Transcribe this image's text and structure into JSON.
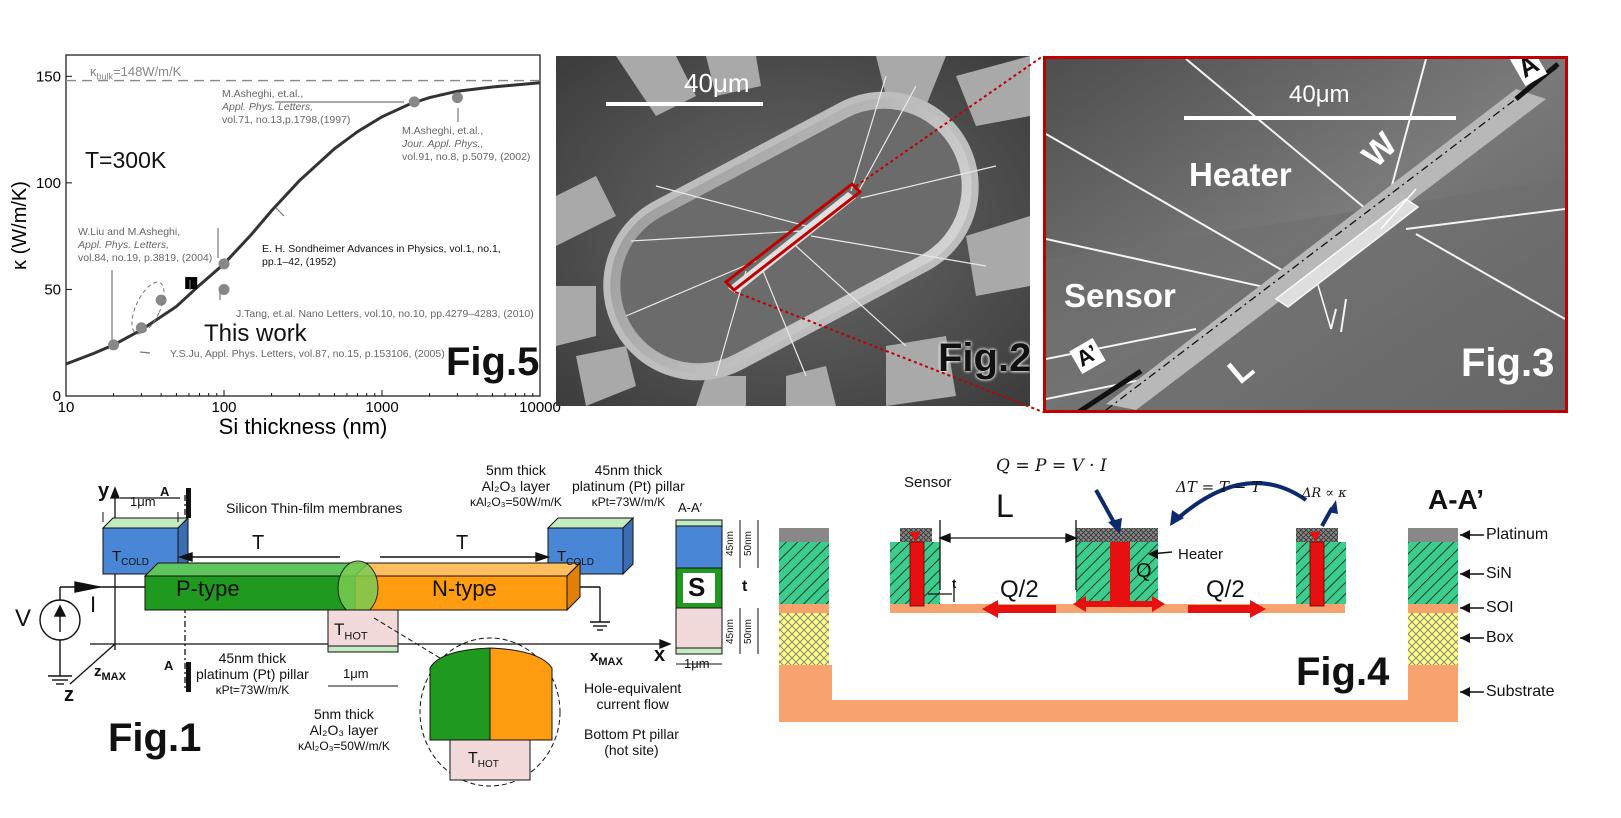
{
  "fig5": {
    "label": "Fig.5",
    "temperature": "T=300K",
    "this_work": "This work",
    "kbulk_prefix": "κ",
    "kbulk_sub": "bulk",
    "kbulk_suffix": "=148W/m/K",
    "refs": {
      "asheghi1997": [
        "M.Asheghi, et.al.,",
        "Appl. Phys. Letters,",
        "vol.71, no.13,p.1798,(1997)"
      ],
      "asheghi2002": [
        "M.Asheghi, et.al.,",
        "Jour. Appl. Phys.,",
        "vol.91, no.8, p.5079, (2002)"
      ],
      "liu2004": [
        "W.Liu and M.Asheghi,",
        "Appl. Phys. Letters,",
        "vol.84, no.19, p.3819, (2004)"
      ],
      "sondheimer": [
        "E. H. Sondheimer Advances in Physics, vol.1, no.1,",
        "pp.1–42, (1952)"
      ],
      "tang": "J.Tang, et.al. Nano Letters, vol.10, no.10, pp.4279–4283, (2010)",
      "ju": "Y.S.Ju, Appl. Phys. Letters, vol.87, no.15, p.153106, (2005)"
    }
  },
  "chart_data": {
    "type": "scatter",
    "xlabel": "Si thickness (nm)",
    "ylabel": "κ (W/m/K)",
    "xscale": "log",
    "xlim": [
      10,
      10000
    ],
    "ylim": [
      0,
      160
    ],
    "xticks": [
      "10",
      "100",
      "1000",
      "10000"
    ],
    "yticks": [
      "0",
      "50",
      "100",
      "150"
    ],
    "reference_line": {
      "y": 148,
      "label": "κbulk=148W/m/K"
    },
    "series": [
      {
        "name": "E. H. Sondheimer",
        "type": "line",
        "x": [
          10,
          15,
          20,
          30,
          50,
          70,
          100,
          150,
          200,
          300,
          500,
          700,
          1000,
          1500,
          2000,
          3000,
          5000,
          10000
        ],
        "y": [
          15,
          20,
          24,
          31,
          42,
          52,
          62,
          76,
          87,
          101,
          116,
          124,
          131,
          137,
          140,
          143,
          145,
          147
        ]
      },
      {
        "name": "W.Liu and M.Asheghi",
        "x": [
          20,
          30
        ],
        "y": [
          24,
          32
        ]
      },
      {
        "name": "Y.S.Ju",
        "x": [
          40
        ],
        "y": [
          45
        ]
      },
      {
        "name": "J.Tang",
        "x": [
          100
        ],
        "y": [
          50
        ]
      },
      {
        "name": "M.Asheghi",
        "x": [
          100,
          1600,
          3000
        ],
        "y": [
          62,
          138,
          140
        ]
      },
      {
        "name": "This work",
        "x": [
          62
        ],
        "y": [
          53
        ]
      }
    ]
  },
  "fig2": {
    "label": "Fig.2",
    "scale": "40μm"
  },
  "fig3": {
    "label": "Fig.3",
    "scale": "40μm",
    "heater": "Heater",
    "sensor": "Sensor",
    "w": "W",
    "l": "L",
    "a": "A",
    "a_prime": "A’"
  },
  "fig1": {
    "label": "Fig.1",
    "y": "y",
    "x": "x",
    "z": "z",
    "v": "V",
    "i": "I",
    "x_max": "x",
    "x_max_sub": "MAX",
    "z_max": "z",
    "z_max_sub": "MAX",
    "one_um_top": "1μm",
    "one_um_bottom": "1μm",
    "one_um_right": "1μm",
    "a": "A",
    "a_prime": "A",
    "t": "T",
    "t_small": "t",
    "t_cold": "T",
    "t_cold_sub": "COLD",
    "t_hot": "T",
    "t_hot_sub": "HOT",
    "p_type": "P-type",
    "n_type": "N-type",
    "membranes": "Silicon Thin-film membranes",
    "al2o3_top": [
      "5nm thick",
      "Al₂O₃ layer",
      "κAl₂O₃=50W/m/K"
    ],
    "pt_top": [
      "45nm thick",
      "platinum (Pt) pillar",
      "κPt=73W/m/K"
    ],
    "pt_bottom": [
      "45nm thick",
      "platinum (Pt) pillar",
      "κPt=73W/m/K"
    ],
    "al2o3_bottom": [
      "5nm thick",
      "Al₂O₃ layer",
      "κAl₂O₃=50W/m/K"
    ],
    "hole_flow": [
      "Hole-equivalent",
      "current flow"
    ],
    "bottom_pt": [
      "Bottom Pt pillar",
      "(hot site)"
    ],
    "aa_label": "A-A′",
    "s": "S",
    "dim_45_top": "45nm",
    "dim_50_top": "50nm",
    "dim_45_bot": "45nm",
    "dim_50_bot": "50nm"
  },
  "fig4": {
    "label": "Fig.4",
    "aa": "A-A’",
    "sensor": "Sensor",
    "heater": "Heater",
    "l": "L",
    "q": "Q",
    "q_half_left": "Q/2",
    "q_half_right": "Q/2",
    "t": "t",
    "eq_q": "Q = P  = V  · I",
    "eq_dt": "ΔT = T  − T",
    "eq_dr": "ΔR ∝ κ",
    "layers": [
      "Platinum",
      "SiN",
      "SOI",
      "Box",
      "Substrate"
    ]
  },
  "colors": {
    "p_type": "#1f9a1f",
    "n_type": "#ff9c10",
    "t_cold": "#4a86d6",
    "pale_green": "#d7f5c9",
    "hot_pink": "#f3dada",
    "substrate": "#f8a26e",
    "sin": "#3ccc8c",
    "box": "#ffff80",
    "arrow_red": "#e61010",
    "navy": "#0d2a6e",
    "frame_red": "#c00000"
  }
}
